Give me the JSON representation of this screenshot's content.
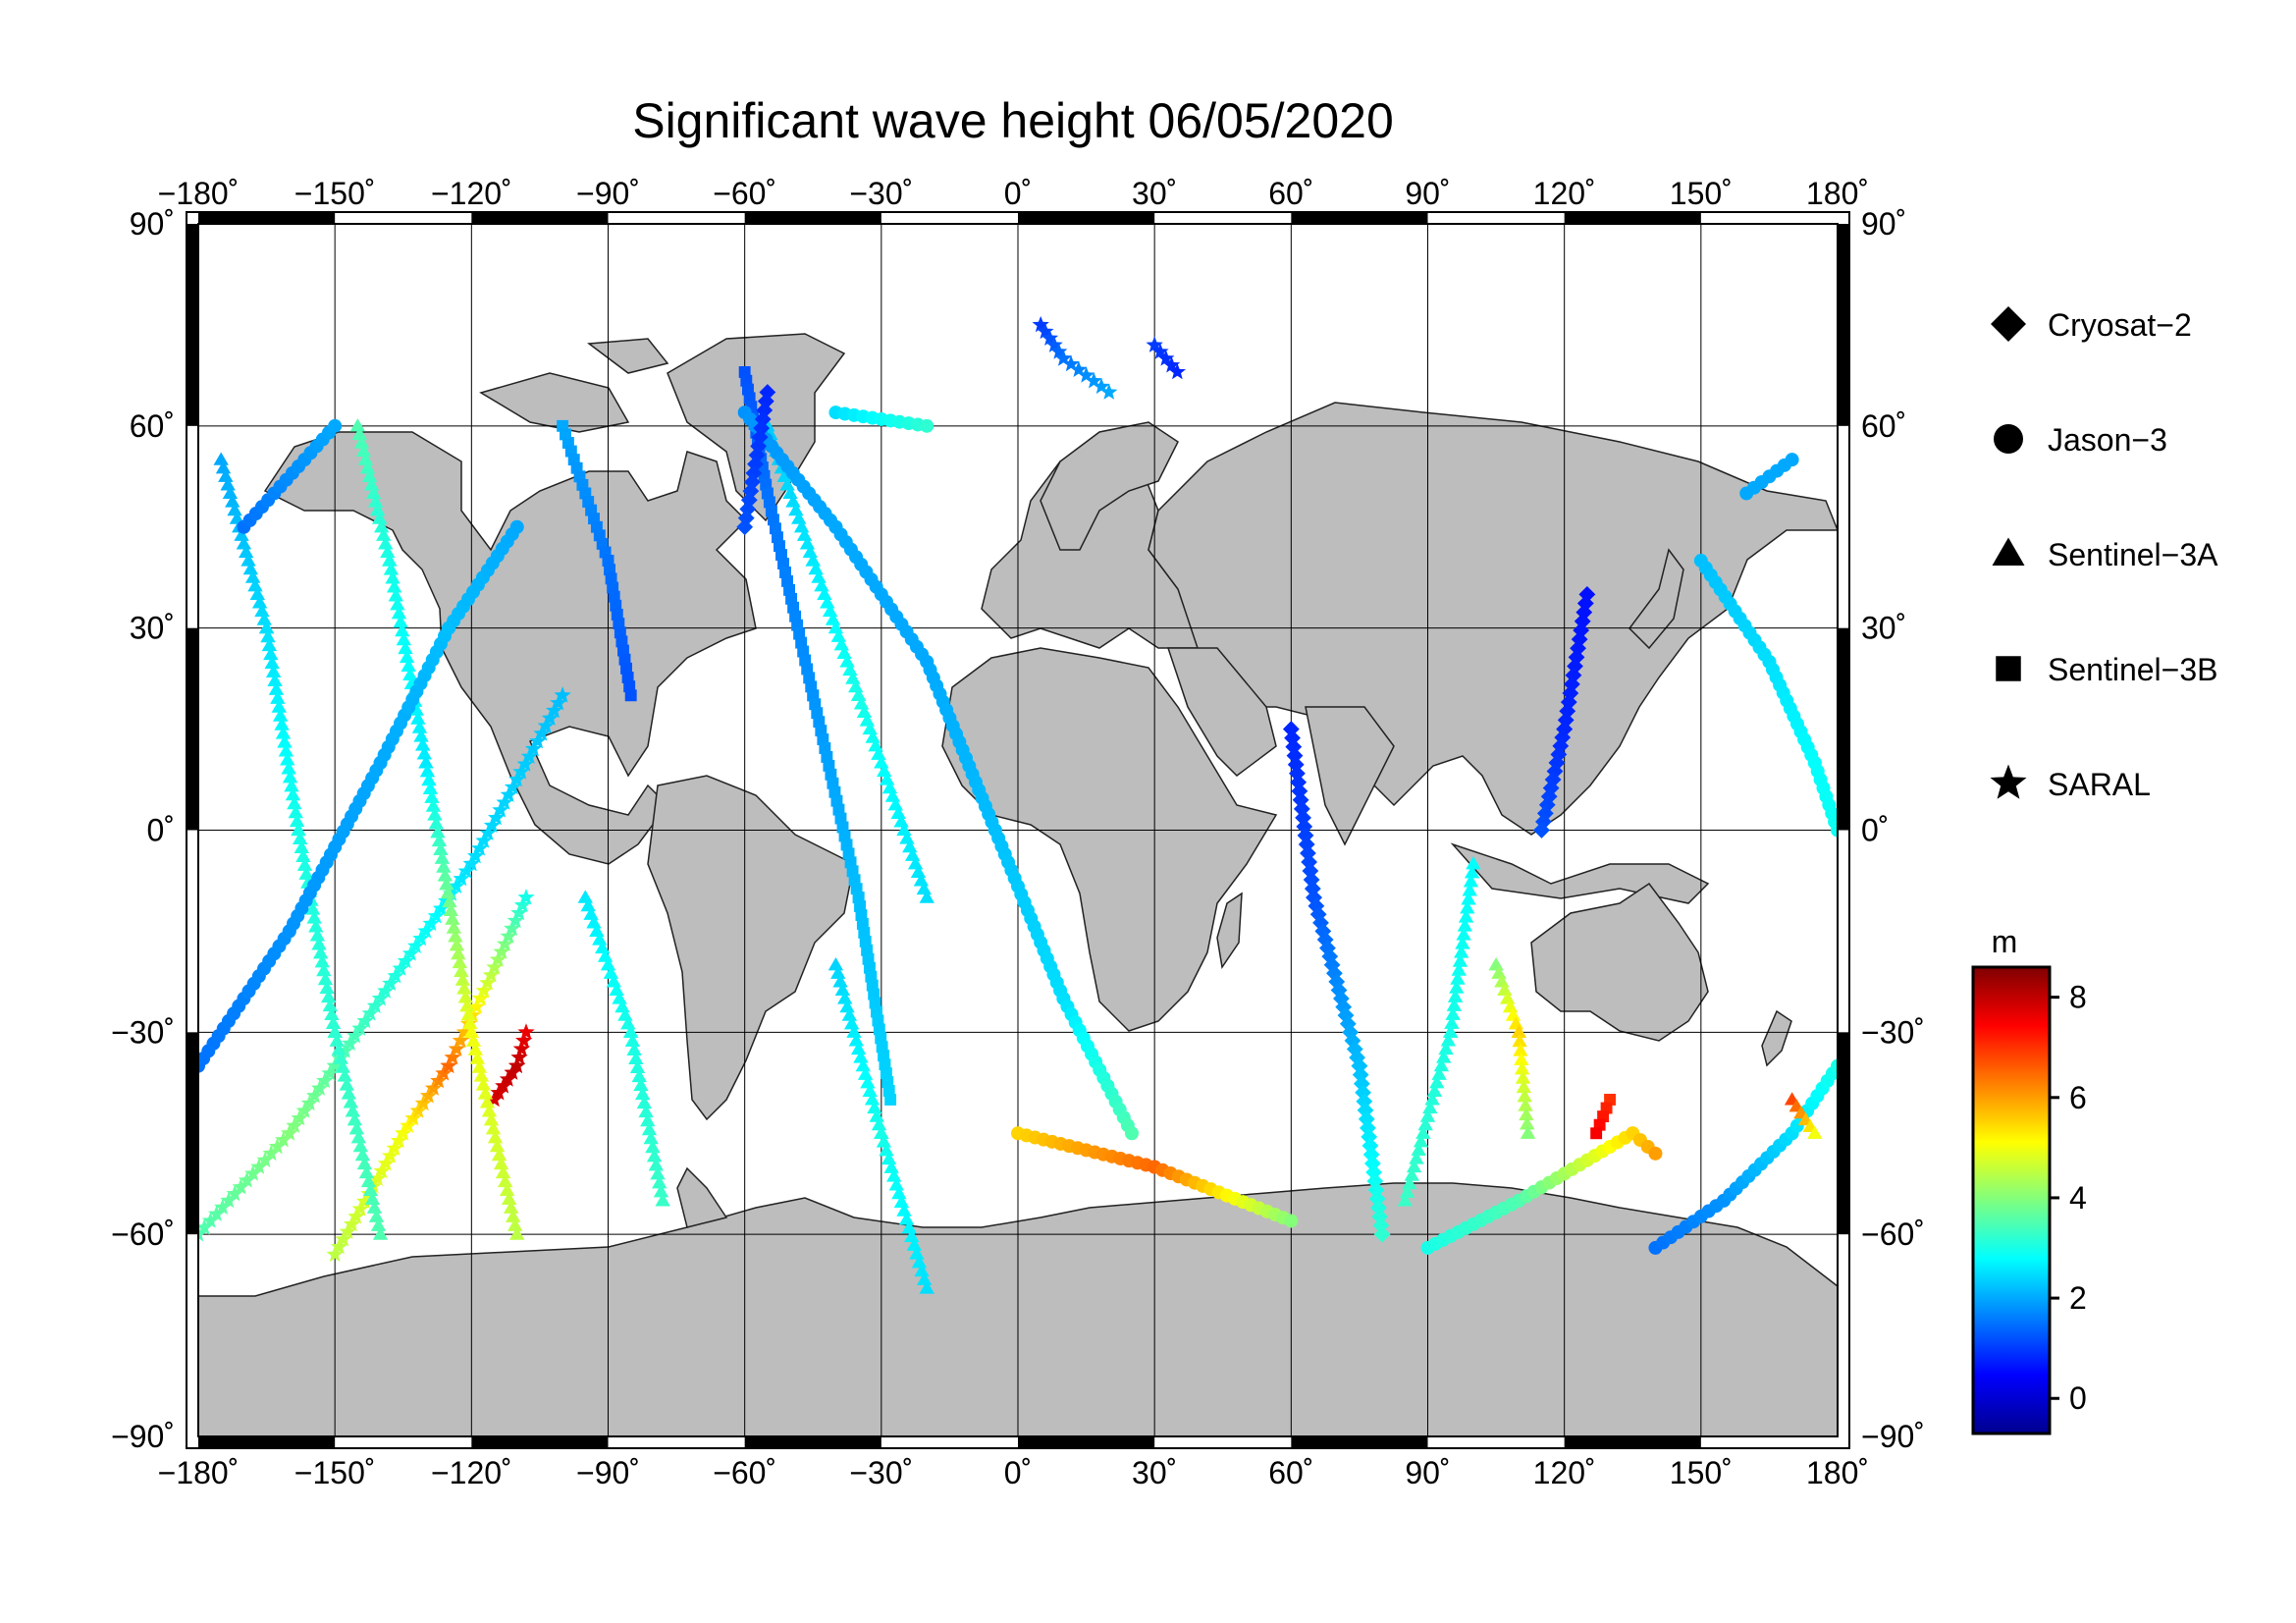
{
  "title": "Significant wave height 06/05/2020",
  "map": {
    "projection": "equirectangular",
    "lon_range": [
      -180,
      180
    ],
    "lat_range": [
      -90,
      90
    ],
    "lon_ticks": [
      -180,
      -150,
      -120,
      -90,
      -60,
      -30,
      0,
      30,
      60,
      90,
      120,
      150,
      180
    ],
    "lat_ticks": [
      90,
      60,
      30,
      0,
      -30,
      -60,
      -90
    ],
    "degree_symbol": "˚",
    "grid": true,
    "land_color": "#bdbdbd",
    "ocean_color": "#ffffff"
  },
  "legend": {
    "placement": "right",
    "items": [
      {
        "label": "Cryosat−2",
        "marker": "diamond"
      },
      {
        "label": "Jason−3",
        "marker": "circle"
      },
      {
        "label": "Sentinel−3A",
        "marker": "triangle"
      },
      {
        "label": "Sentinel−3B",
        "marker": "square"
      },
      {
        "label": "SARAL",
        "marker": "star"
      }
    ]
  },
  "colorbar": {
    "unit": "m",
    "range": [
      -0.7,
      8.6
    ],
    "ticks": [
      8,
      6,
      4,
      2,
      0
    ],
    "colormap": "jet"
  },
  "chart_data": {
    "type": "scatter",
    "title": "Significant wave height 06/05/2020",
    "xlabel": "",
    "ylabel": "",
    "xlim": [
      -180,
      180
    ],
    "ylim": [
      -90,
      90
    ],
    "value_unit": "m",
    "tracks": [
      {
        "satellite": "SARAL",
        "marker": "star",
        "points": [
          [
            -180,
            -60,
            3.5
          ],
          [
            -160,
            -45,
            4
          ],
          [
            -140,
            -25,
            3.2
          ],
          [
            -120,
            -5,
            2.5
          ],
          [
            -100,
            20,
            2.2
          ]
        ]
      },
      {
        "satellite": "SARAL",
        "marker": "star",
        "points": [
          [
            -150,
            -63,
            4.5
          ],
          [
            -135,
            -45,
            5
          ],
          [
            -125,
            -35,
            6.5
          ],
          [
            -118,
            -25,
            5
          ],
          [
            -108,
            -10,
            3
          ]
        ]
      },
      {
        "satellite": "SARAL",
        "marker": "star",
        "points": [
          [
            -115,
            -40,
            7.8
          ],
          [
            -110,
            -35,
            8
          ],
          [
            -108,
            -30,
            7.6
          ]
        ]
      },
      {
        "satellite": "Sentinel-3A",
        "marker": "triangle",
        "points": [
          [
            -175,
            55,
            2
          ],
          [
            -165,
            30,
            2.5
          ],
          [
            -158,
            0,
            3
          ],
          [
            -150,
            -30,
            3.2
          ],
          [
            -140,
            -60,
            3.5
          ]
        ]
      },
      {
        "satellite": "Sentinel-3A",
        "marker": "triangle",
        "points": [
          [
            -145,
            60,
            3.5
          ],
          [
            -138,
            40,
            3
          ],
          [
            -130,
            10,
            2.6
          ],
          [
            -120,
            -30,
            5
          ],
          [
            -110,
            -60,
            4.5
          ]
        ]
      },
      {
        "satellite": "Sentinel-3A",
        "marker": "triangle",
        "points": [
          [
            -95,
            -10,
            2.6
          ],
          [
            -85,
            -30,
            3
          ],
          [
            -78,
            -55,
            3.3
          ]
        ]
      },
      {
        "satellite": "Sentinel-3A",
        "marker": "triangle",
        "points": [
          [
            -40,
            -20,
            2.4
          ],
          [
            -30,
            -45,
            3
          ],
          [
            -20,
            -68,
            2.5
          ]
        ]
      },
      {
        "satellite": "Sentinel-3A",
        "marker": "triangle",
        "points": [
          [
            -55,
            60,
            2.3
          ],
          [
            -45,
            40,
            2.6
          ],
          [
            -35,
            20,
            3
          ],
          [
            -20,
            -10,
            2.5
          ]
        ]
      },
      {
        "satellite": "Sentinel-3B",
        "marker": "square",
        "points": [
          [
            -60,
            68,
            1.2
          ],
          [
            -55,
            50,
            1.5
          ],
          [
            -45,
            20,
            1.8
          ],
          [
            -35,
            -10,
            2.2
          ],
          [
            -28,
            -40,
            2.4
          ]
        ]
      },
      {
        "satellite": "Sentinel-3B",
        "marker": "square",
        "points": [
          [
            130,
            -40,
            7
          ],
          [
            127,
            -45,
            7.5
          ]
        ]
      },
      {
        "satellite": "Jason-3",
        "marker": "circle",
        "points": [
          [
            -180,
            -35,
            1.5
          ],
          [
            -160,
            -15,
            1.8
          ],
          [
            -140,
            10,
            2
          ],
          [
            -125,
            30,
            2.2
          ],
          [
            -110,
            45,
            2
          ]
        ]
      },
      {
        "satellite": "Jason-3",
        "marker": "circle",
        "points": [
          [
            -170,
            45,
            1.5
          ],
          [
            -150,
            60,
            2
          ]
        ]
      },
      {
        "satellite": "Jason-3",
        "marker": "circle",
        "points": [
          [
            -60,
            62,
            1.8
          ],
          [
            -40,
            45,
            2
          ],
          [
            -20,
            25,
            2
          ],
          [
            -5,
            0,
            2.2
          ],
          [
            10,
            -25,
            2.5
          ],
          [
            25,
            -45,
            3.5
          ]
        ]
      },
      {
        "satellite": "Jason-3",
        "marker": "circle",
        "points": [
          [
            -40,
            62,
            2.5
          ],
          [
            -20,
            60,
            3.2
          ]
        ]
      },
      {
        "satellite": "Jason-3",
        "marker": "circle",
        "points": [
          [
            0,
            -45,
            5.5
          ],
          [
            30,
            -50,
            6.5
          ],
          [
            60,
            -58,
            4
          ]
        ]
      },
      {
        "satellite": "Jason-3",
        "marker": "circle",
        "points": [
          [
            90,
            -62,
            3
          ],
          [
            110,
            -55,
            3.5
          ],
          [
            135,
            -45,
            5.5
          ],
          [
            140,
            -48,
            6
          ]
        ]
      },
      {
        "satellite": "Jason-3",
        "marker": "circle",
        "points": [
          [
            140,
            -62,
            1.5
          ],
          [
            155,
            -55,
            1.8
          ],
          [
            170,
            -45,
            2.5
          ],
          [
            180,
            -35,
            3
          ]
        ]
      },
      {
        "satellite": "Jason-3",
        "marker": "circle",
        "points": [
          [
            150,
            40,
            2.2
          ],
          [
            165,
            25,
            2.5
          ],
          [
            175,
            10,
            2.8
          ],
          [
            180,
            0,
            2.9
          ]
        ]
      },
      {
        "satellite": "Jason-3",
        "marker": "circle",
        "points": [
          [
            160,
            50,
            2
          ],
          [
            170,
            55,
            2
          ]
        ]
      },
      {
        "satellite": "Cryosat-2",
        "marker": "diamond",
        "points": [
          [
            60,
            15,
            0.8
          ],
          [
            65,
            -10,
            1.2
          ],
          [
            75,
            -35,
            2.2
          ],
          [
            80,
            -60,
            3.2
          ]
        ]
      },
      {
        "satellite": "Cryosat-2",
        "marker": "diamond",
        "points": [
          [
            125,
            35,
            0.6
          ],
          [
            120,
            15,
            0.8
          ],
          [
            115,
            0,
            1.2
          ]
        ]
      },
      {
        "satellite": "Cryosat-2",
        "marker": "diamond",
        "points": [
          [
            -55,
            65,
            0.8
          ],
          [
            -60,
            45,
            1.2
          ]
        ]
      },
      {
        "satellite": "SARAL",
        "marker": "star",
        "points": [
          [
            5,
            75,
            1
          ],
          [
            10,
            70,
            1.5
          ],
          [
            20,
            65,
            2
          ]
        ]
      },
      {
        "satellite": "SARAL",
        "marker": "star",
        "points": [
          [
            30,
            72,
            1
          ],
          [
            35,
            68,
            0.8
          ]
        ]
      },
      {
        "satellite": "Sentinel-3A",
        "marker": "triangle",
        "points": [
          [
            100,
            -5,
            2.8
          ],
          [
            95,
            -30,
            3
          ],
          [
            85,
            -55,
            3.3
          ]
        ]
      },
      {
        "satellite": "Sentinel-3A",
        "marker": "triangle",
        "points": [
          [
            105,
            -20,
            4
          ],
          [
            110,
            -30,
            5.5
          ],
          [
            112,
            -45,
            4
          ]
        ]
      },
      {
        "satellite": "Sentinel-3A",
        "marker": "triangle",
        "points": [
          [
            170,
            -40,
            6.8
          ],
          [
            175,
            -45,
            5
          ]
        ]
      },
      {
        "satellite": "Sentinel-3B",
        "marker": "square",
        "points": [
          [
            -100,
            60,
            2
          ],
          [
            -90,
            40,
            1.5
          ],
          [
            -85,
            20,
            1.2
          ]
        ]
      }
    ]
  }
}
